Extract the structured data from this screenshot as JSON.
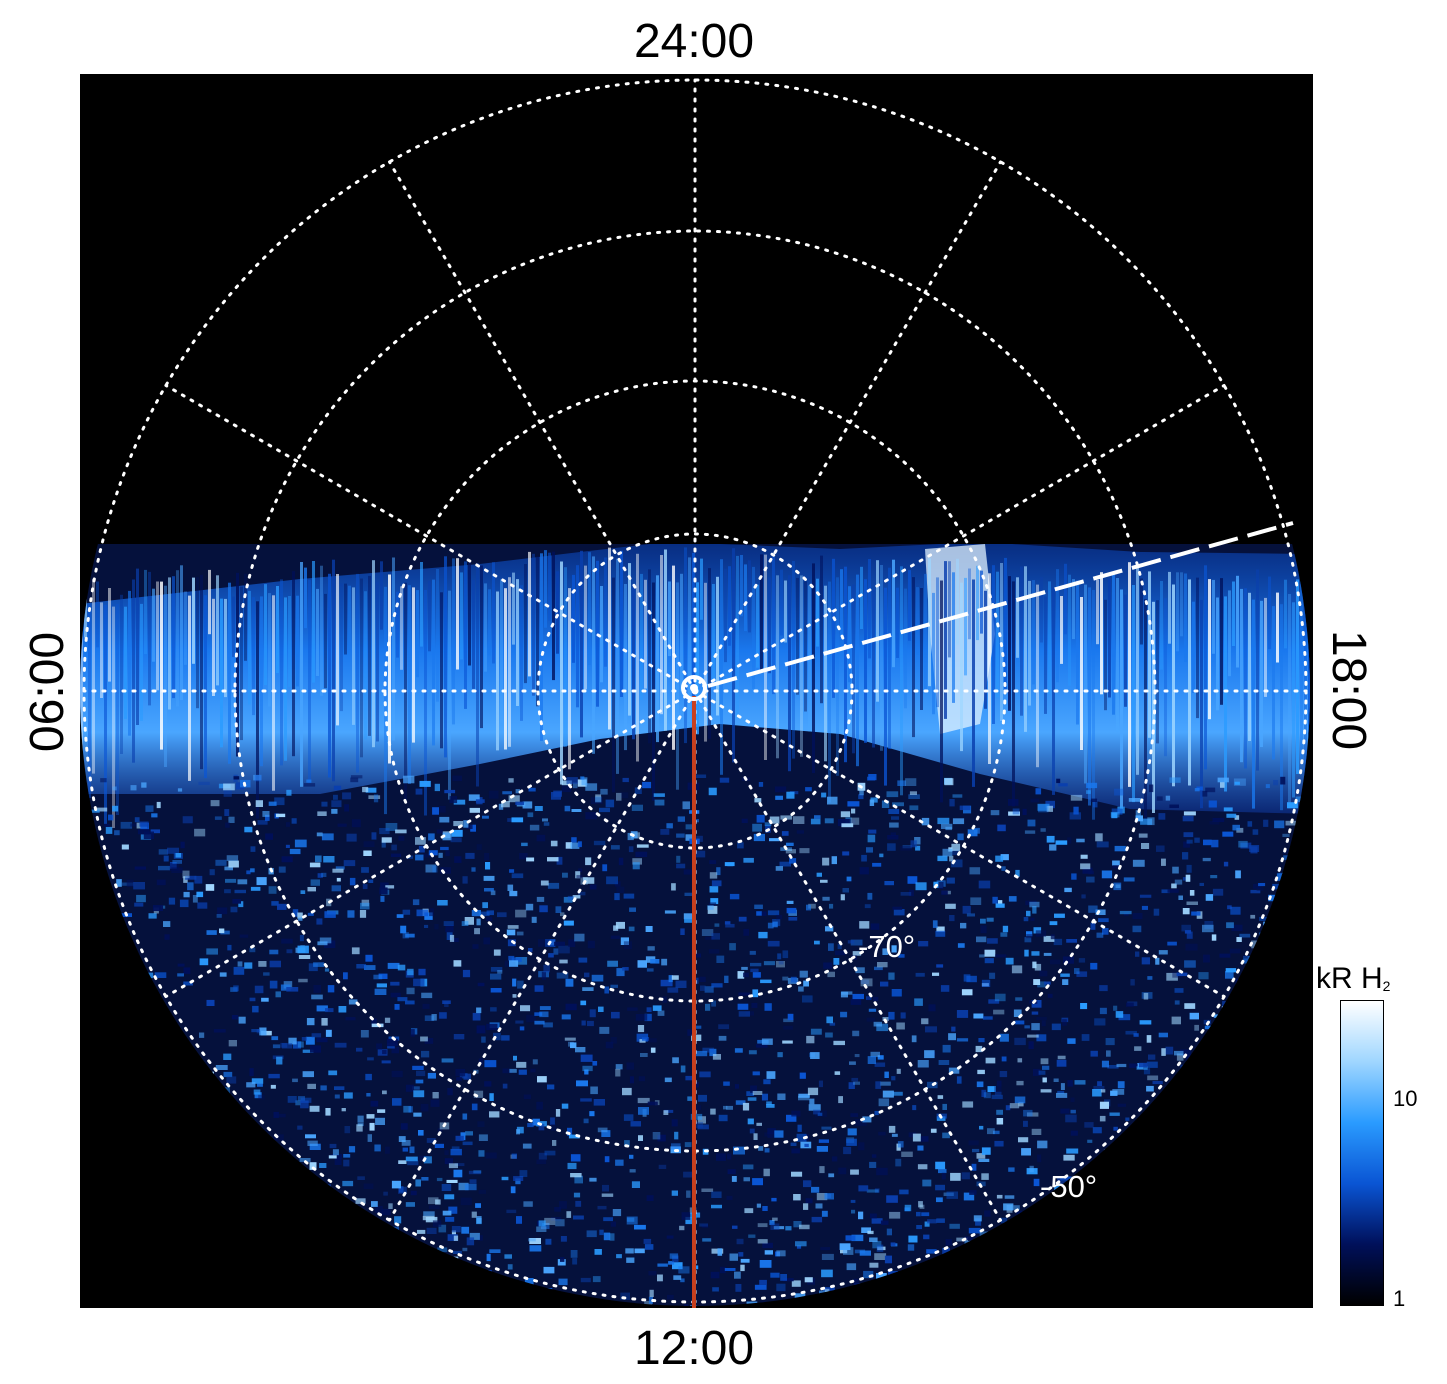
{
  "axis_labels": {
    "top": "24:00",
    "bottom": "12:00",
    "left": "06:00",
    "right": "18:00"
  },
  "latitude_labels": [
    "-70°",
    "-50°"
  ],
  "colorbar": {
    "title_main": "kR H",
    "title_sub": "2",
    "tick_labels": [
      "10",
      "1"
    ],
    "colors": [
      "#000000",
      "#00105a",
      "#0a55d4",
      "#2a9bff",
      "#9fd6ff",
      "#ffffff"
    ]
  },
  "colors": {
    "background": "#000000",
    "grid": "#ffffff",
    "meridian_line": "#c8401e"
  }
}
